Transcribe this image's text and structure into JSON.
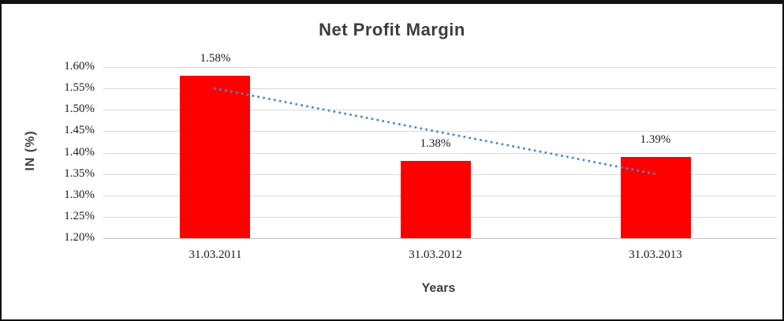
{
  "page": {
    "background": "#ffffff",
    "frame_border_color": "#111111"
  },
  "chart_data": {
    "type": "bar",
    "title": "Net Profit Margin",
    "xlabel": "Years",
    "ylabel": "IN (%)",
    "categories": [
      "31.03.2011",
      "31.03.2012",
      "31.03.2013"
    ],
    "values": [
      1.58,
      1.38,
      1.39
    ],
    "value_labels": [
      "1.58%",
      "1.38%",
      "1.39%"
    ],
    "ylim": [
      1.2,
      1.6
    ],
    "ytick_step": 0.05,
    "ytick_labels": [
      "1.20%",
      "1.25%",
      "1.30%",
      "1.35%",
      "1.40%",
      "1.45%",
      "1.50%",
      "1.55%",
      "1.60%"
    ],
    "grid": true,
    "legend": "none",
    "bar_color": "#ff0000",
    "gridline_color": "#d9d9d9",
    "baseline_color": "#c3c3c3",
    "title_color": "#3d3d3d",
    "text_color": "#1a1a1a",
    "trendline": {
      "style": "dotted",
      "color": "#4e8ac8",
      "start": {
        "category_index": 0,
        "value": 1.55
      },
      "end": {
        "category_index": 2,
        "value": 1.35
      }
    }
  }
}
